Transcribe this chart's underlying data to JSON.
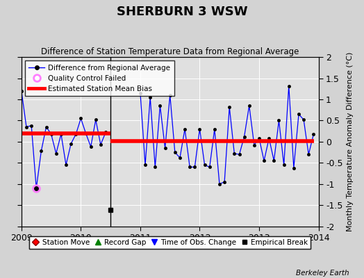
{
  "title": "SHERBURN 3 WSW",
  "subtitle": "Difference of Station Temperature Data from Regional Average",
  "ylabel": "Monthly Temperature Anomaly Difference (°C)",
  "credit": "Berkeley Earth",
  "xlim": [
    2009.0,
    2014.0
  ],
  "ylim": [
    -2.0,
    2.0
  ],
  "fig_bg_color": "#d3d3d3",
  "plot_bg_color": "#e0e0e0",
  "segment1_bias": 0.19,
  "segment2_bias": 0.02,
  "break_x": 2010.5,
  "empirical_break_x": 2010.5,
  "empirical_break_y": -1.62,
  "qc_fail_x": 2009.25,
  "qc_fail_y": -1.1,
  "time_series": [
    [
      2009.0,
      1.2
    ],
    [
      2009.083,
      0.35
    ],
    [
      2009.167,
      0.38
    ],
    [
      2009.25,
      -1.1
    ],
    [
      2009.333,
      -0.22
    ],
    [
      2009.417,
      0.35
    ],
    [
      2009.5,
      0.18
    ],
    [
      2009.583,
      -0.28
    ],
    [
      2009.667,
      0.18
    ],
    [
      2009.75,
      -0.55
    ],
    [
      2009.833,
      -0.05
    ],
    [
      2009.917,
      0.18
    ],
    [
      2010.0,
      0.55
    ],
    [
      2010.083,
      0.2
    ],
    [
      2010.167,
      -0.12
    ],
    [
      2010.25,
      0.52
    ],
    [
      2010.333,
      -0.07
    ],
    [
      2010.417,
      0.22
    ],
    [
      2011.0,
      1.15
    ],
    [
      2011.083,
      -0.55
    ],
    [
      2011.167,
      1.05
    ],
    [
      2011.25,
      -0.6
    ],
    [
      2011.333,
      0.85
    ],
    [
      2011.417,
      -0.15
    ],
    [
      2011.5,
      1.1
    ],
    [
      2011.583,
      -0.25
    ],
    [
      2011.667,
      -0.38
    ],
    [
      2011.75,
      0.3
    ],
    [
      2011.833,
      -0.6
    ],
    [
      2011.917,
      -0.6
    ],
    [
      2012.0,
      0.3
    ],
    [
      2012.083,
      -0.55
    ],
    [
      2012.167,
      -0.6
    ],
    [
      2012.25,
      0.3
    ],
    [
      2012.333,
      -1.0
    ],
    [
      2012.417,
      -0.95
    ],
    [
      2012.5,
      0.82
    ],
    [
      2012.583,
      -0.28
    ],
    [
      2012.667,
      -0.3
    ],
    [
      2012.75,
      0.12
    ],
    [
      2012.833,
      0.85
    ],
    [
      2012.917,
      -0.08
    ],
    [
      2013.0,
      0.08
    ],
    [
      2013.083,
      -0.45
    ],
    [
      2013.167,
      0.08
    ],
    [
      2013.25,
      -0.45
    ],
    [
      2013.333,
      0.5
    ],
    [
      2013.417,
      -0.55
    ],
    [
      2013.5,
      1.32
    ],
    [
      2013.583,
      -0.62
    ],
    [
      2013.667,
      0.65
    ],
    [
      2013.75,
      0.52
    ],
    [
      2013.833,
      -0.3
    ],
    [
      2013.917,
      0.18
    ]
  ],
  "xticks": [
    2009,
    2010,
    2011,
    2012,
    2013,
    2014
  ],
  "ytick_labels": [
    "-2",
    "-1.5",
    "-1",
    "-0.5",
    "0",
    "0.5",
    "1",
    "1.5",
    "2"
  ],
  "ytick_vals": [
    -2,
    -1.5,
    -1,
    -0.5,
    0,
    0.5,
    1,
    1.5,
    2
  ]
}
